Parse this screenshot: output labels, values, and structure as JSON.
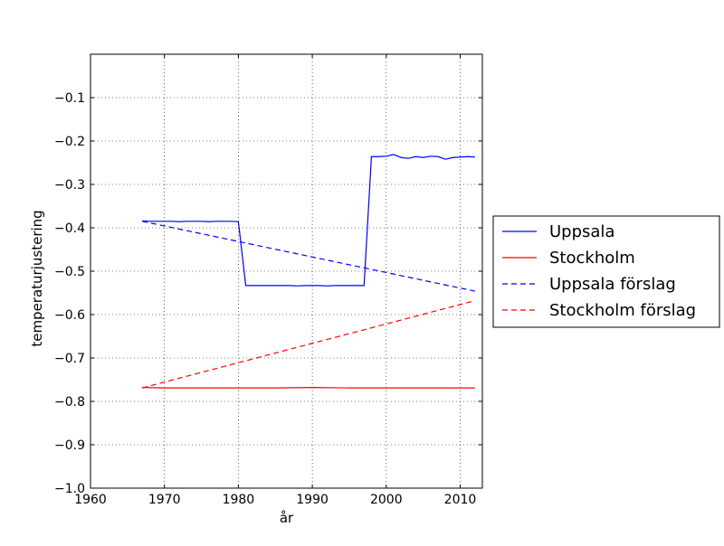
{
  "chart_data": {
    "type": "line",
    "title": "",
    "xlabel": "år",
    "ylabel": "temperaturjustering",
    "xlim": [
      1960,
      2013
    ],
    "ylim": [
      -1.0,
      0.0
    ],
    "x_ticks": [
      1960,
      1970,
      1980,
      1990,
      2000,
      2010
    ],
    "x_tick_labels": [
      "1960",
      "1970",
      "1980",
      "1990",
      "2000",
      "2010"
    ],
    "y_ticks": [
      -1.0,
      -0.9,
      -0.8,
      -0.7,
      -0.6,
      -0.5,
      -0.4,
      -0.3,
      -0.2,
      -0.1
    ],
    "y_tick_labels": [
      "−1.0",
      "−0.9",
      "−0.8",
      "−0.7",
      "−0.6",
      "−0.5",
      "−0.4",
      "−0.3",
      "−0.2",
      "−0.1"
    ],
    "grid": true,
    "legend_position": "outside-right",
    "series": [
      {
        "name": "Uppsala",
        "color": "#0000ff",
        "style": "solid",
        "x": [
          1967,
          1968,
          1969,
          1970,
          1971,
          1972,
          1973,
          1974,
          1975,
          1976,
          1977,
          1978,
          1979,
          1980,
          1981,
          1982,
          1983,
          1984,
          1985,
          1986,
          1987,
          1988,
          1989,
          1990,
          1991,
          1992,
          1993,
          1994,
          1995,
          1996,
          1997,
          1998,
          1999,
          2000,
          2001,
          2002,
          2003,
          2004,
          2005,
          2006,
          2007,
          2008,
          2009,
          2010,
          2011,
          2012
        ],
        "y": [
          -0.384,
          -0.385,
          -0.385,
          -0.385,
          -0.385,
          -0.386,
          -0.385,
          -0.385,
          -0.385,
          -0.386,
          -0.385,
          -0.385,
          -0.385,
          -0.386,
          -0.533,
          -0.533,
          -0.533,
          -0.533,
          -0.533,
          -0.533,
          -0.533,
          -0.534,
          -0.533,
          -0.533,
          -0.533,
          -0.534,
          -0.533,
          -0.533,
          -0.533,
          -0.533,
          -0.533,
          -0.236,
          -0.236,
          -0.235,
          -0.231,
          -0.238,
          -0.24,
          -0.236,
          -0.238,
          -0.235,
          -0.236,
          -0.242,
          -0.238,
          -0.237,
          -0.236,
          -0.237
        ]
      },
      {
        "name": "Stockholm",
        "color": "#ff0000",
        "style": "solid",
        "x": [
          1967,
          1970,
          1975,
          1980,
          1985,
          1990,
          1995,
          2000,
          2005,
          2010,
          2012
        ],
        "y": [
          -0.768,
          -0.769,
          -0.769,
          -0.769,
          -0.769,
          -0.768,
          -0.769,
          -0.769,
          -0.769,
          -0.769,
          -0.769
        ]
      },
      {
        "name": "Uppsala förslag",
        "color": "#0000ff",
        "style": "dashed",
        "x": [
          1967,
          2012
        ],
        "y": [
          -0.385,
          -0.546
        ]
      },
      {
        "name": "Stockholm förslag",
        "color": "#ff0000",
        "style": "dashed",
        "x": [
          1967,
          2012
        ],
        "y": [
          -0.769,
          -0.568
        ]
      }
    ]
  }
}
